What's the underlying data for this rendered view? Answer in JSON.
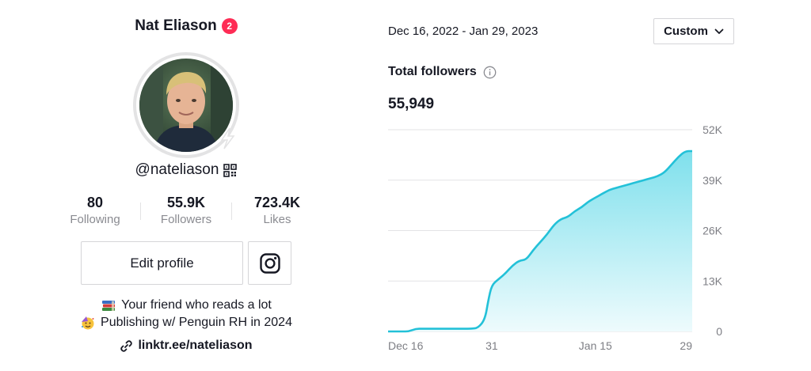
{
  "profile": {
    "name": "Nat Eliason",
    "notification_count": "2",
    "handle": "@nateliason",
    "stats": [
      {
        "value": "80",
        "label": "Following"
      },
      {
        "value": "55.9K",
        "label": "Followers"
      },
      {
        "value": "723.4K",
        "label": "Likes"
      }
    ],
    "edit_label": "Edit profile",
    "bio": [
      {
        "emoji": "books-emoji",
        "text": "Your friend who reads a lot"
      },
      {
        "emoji": "partying-face-emoji",
        "text": "Publishing w/ Penguin RH in 2024"
      }
    ],
    "link": "linktr.ee/nateliason"
  },
  "analytics": {
    "date_range": "Dec 16, 2022 - Jan 29, 2023",
    "range_button": "Custom",
    "metric_title": "Total followers",
    "metric_value": "55,949"
  },
  "chart_data": {
    "type": "area",
    "title": "",
    "xlabel": "",
    "ylabel": "",
    "ylim": [
      0,
      52000
    ],
    "y_ticks": [
      0,
      13000,
      26000,
      39000,
      52000
    ],
    "y_tick_labels": [
      "0",
      "13K",
      "26K",
      "39K",
      "52K"
    ],
    "x_tick_labels": [
      {
        "day": 0,
        "label": "Dec 16"
      },
      {
        "day": 15,
        "label": "31"
      },
      {
        "day": 30,
        "label": "Jan 15"
      },
      {
        "day": 44,
        "label": "29"
      }
    ],
    "x_range": [
      0,
      44
    ],
    "x_days": [
      0,
      1,
      2,
      3,
      4,
      5,
      6,
      7,
      8,
      9,
      10,
      11,
      12,
      13,
      14,
      14.5,
      15,
      16,
      17,
      18,
      19,
      20,
      21,
      22,
      23,
      24,
      25,
      26,
      27,
      28,
      29,
      30,
      31,
      32,
      33,
      34,
      35,
      36,
      37,
      38,
      39,
      40,
      41,
      42,
      43,
      44
    ],
    "values": [
      0,
      0,
      0,
      0,
      700,
      700,
      700,
      700,
      700,
      700,
      700,
      700,
      700,
      900,
      3000,
      8000,
      12000,
      13500,
      15000,
      17000,
      18300,
      18500,
      21000,
      23000,
      25000,
      27500,
      29000,
      29500,
      31000,
      32000,
      33500,
      34500,
      35500,
      36500,
      37000,
      37500,
      38000,
      38500,
      39000,
      39500,
      40000,
      41000,
      43000,
      45000,
      46500,
      46500
    ],
    "colors": {
      "line": "#23c1d8",
      "fill_top": "#7fe0ec",
      "fill_bottom": "#eefbfd",
      "grid": "#e3e3e6",
      "tick": "#7d7e84"
    },
    "grid": true
  }
}
